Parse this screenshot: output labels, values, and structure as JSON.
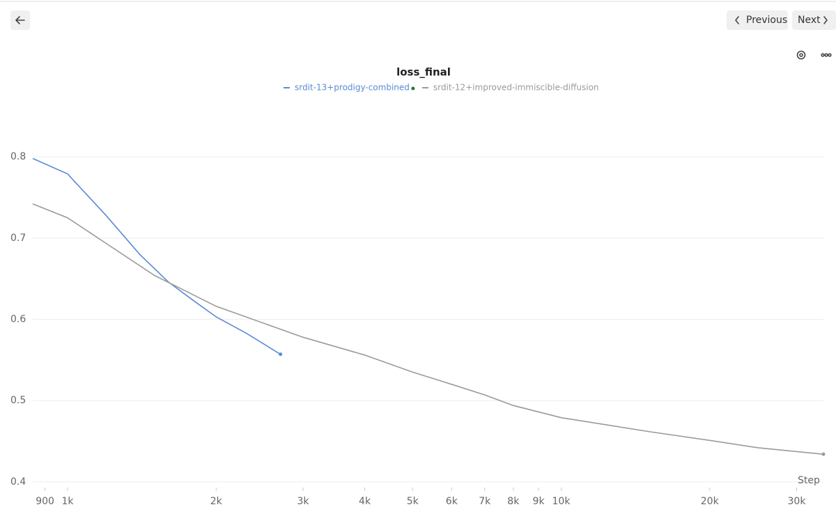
{
  "nav": {
    "previous": "Previous",
    "next": "Next"
  },
  "chart_data": {
    "type": "line",
    "title": "loss_final",
    "xlabel": "Step",
    "xscale": "log",
    "xlim": [
      850,
      34000
    ],
    "ylim": [
      0.393,
      0.873
    ],
    "xticks": [
      900,
      {
        "value": 1000,
        "label": "1k"
      },
      {
        "value": 2000,
        "label": "2k"
      },
      {
        "value": 3000,
        "label": "3k"
      },
      {
        "value": 4000,
        "label": "4k"
      },
      {
        "value": 5000,
        "label": "5k"
      },
      {
        "value": 6000,
        "label": "6k"
      },
      {
        "value": 7000,
        "label": "7k"
      },
      {
        "value": 8000,
        "label": "8k"
      },
      {
        "value": 9000,
        "label": "9k"
      },
      {
        "value": 10000,
        "label": "10k"
      },
      {
        "value": 20000,
        "label": "20k"
      },
      {
        "value": 30000,
        "label": "30k"
      }
    ],
    "yticks": [
      0.4,
      0.5,
      0.6,
      0.7,
      0.8
    ],
    "grid": true,
    "legend": "top",
    "series": [
      {
        "name": "srdit-13+prodigy-combined",
        "color": "#5a8ad6",
        "x": [
          850,
          1000,
          1200,
          1400,
          1600,
          1800,
          2000,
          2300,
          2700
        ],
        "values": [
          0.798,
          0.779,
          0.727,
          0.68,
          0.646,
          0.623,
          0.603,
          0.583,
          0.557
        ]
      },
      {
        "name": "srdit-12+improved-immiscible-diffusion",
        "color": "#9a9a9a",
        "x": [
          850,
          1000,
          1200,
          1500,
          2000,
          3000,
          4000,
          5000,
          6000,
          7000,
          8000,
          10000,
          15000,
          20000,
          25000,
          34000
        ],
        "values": [
          0.742,
          0.725,
          0.693,
          0.654,
          0.616,
          0.578,
          0.556,
          0.535,
          0.52,
          0.507,
          0.494,
          0.479,
          0.462,
          0.451,
          0.442,
          0.434
        ]
      }
    ]
  }
}
